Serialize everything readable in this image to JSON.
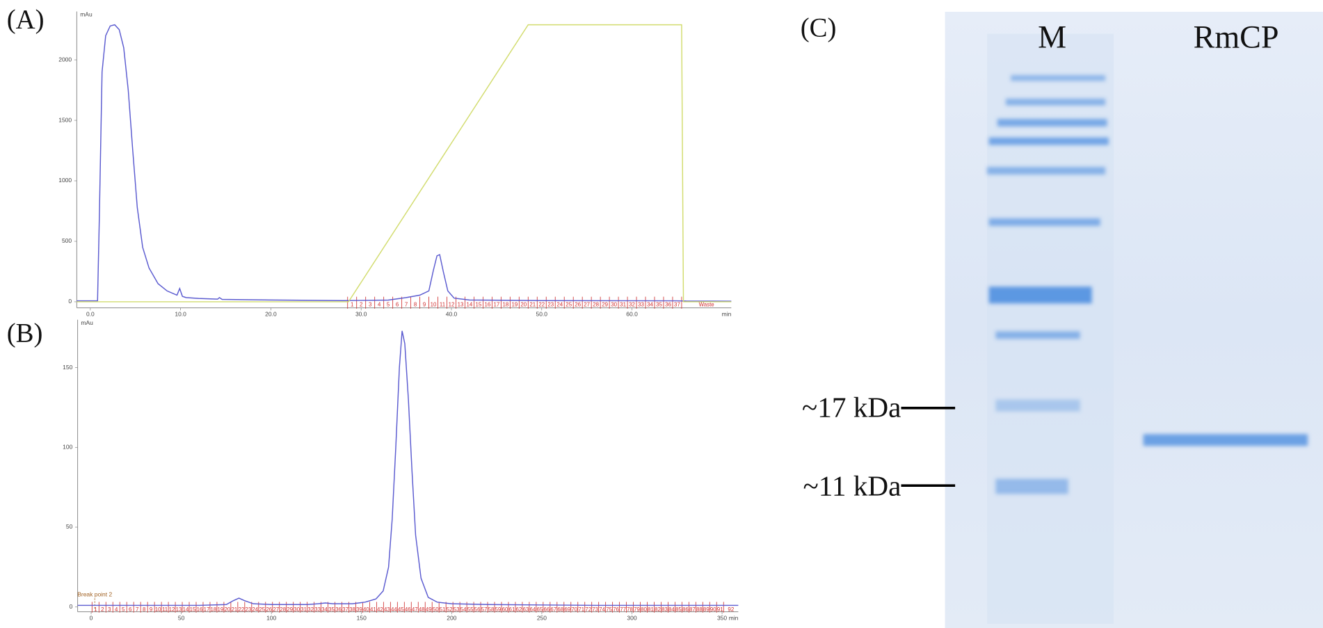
{
  "chart_data": [
    {
      "type": "line",
      "title": "(A)",
      "xlabel": "min",
      "ylabel": "mAu",
      "xlim": [
        -1.5,
        71
      ],
      "ylim": [
        -50,
        2400
      ],
      "xticks": [
        {
          "value": 0,
          "label": "0.0"
        },
        {
          "value": 10,
          "label": "10.0"
        },
        {
          "value": 20,
          "label": "20.0"
        },
        {
          "value": 30,
          "label": "30.0"
        },
        {
          "value": 40,
          "label": "40.0"
        },
        {
          "value": 50,
          "label": "50.0"
        },
        {
          "value": 60,
          "label": "60.0"
        }
      ],
      "yticks": [
        0,
        500,
        1000,
        1500,
        2000
      ],
      "series": [
        {
          "color": "#5b5bd0",
          "x": [
            -1.5,
            0.8,
            1.0,
            1.3,
            1.7,
            2.2,
            2.7,
            3.2,
            3.7,
            4.2,
            4.7,
            5.2,
            5.8,
            6.5,
            7.5,
            8.5,
            9.6,
            9.9,
            10.2,
            10.6,
            12,
            14.1,
            14.3,
            14.6,
            20,
            28,
            33,
            35,
            36.5,
            37.5,
            38,
            38.4,
            38.7,
            39.1,
            39.6,
            40.3,
            42,
            50,
            65,
            66,
            71
          ],
          "values": [
            8,
            8,
            700,
            1900,
            2200,
            2280,
            2290,
            2250,
            2100,
            1750,
            1250,
            780,
            450,
            280,
            150,
            90,
            55,
            110,
            45,
            35,
            28,
            22,
            35,
            20,
            15,
            10,
            14,
            35,
            55,
            90,
            260,
            380,
            390,
            250,
            90,
            30,
            15,
            10,
            8,
            6,
            5
          ]
        },
        {
          "color": "#d2dc6e",
          "x": [
            -1.5,
            28.6,
            48.5,
            65.5,
            65.7,
            71
          ],
          "values": [
            0,
            0,
            2290,
            2290,
            0,
            0
          ]
        }
      ],
      "fractions": {
        "start": 28.5,
        "width": 1.0,
        "labels": [
          "1",
          "2",
          "3",
          "4",
          "5",
          "6",
          "7",
          "8",
          "9",
          "10",
          "11",
          "12",
          "13",
          "14",
          "15",
          "16",
          "17",
          "18",
          "19",
          "20",
          "21",
          "22",
          "23",
          "24",
          "25",
          "26",
          "27",
          "28",
          "29",
          "30",
          "31",
          "32",
          "33",
          "34",
          "35",
          "36",
          "37",
          "Waste"
        ]
      }
    },
    {
      "type": "line",
      "title": "(B)",
      "xlabel": "min",
      "ylabel": "mAu",
      "xlim": [
        -7.5,
        359
      ],
      "ylim": [
        -3,
        180
      ],
      "xticks": [
        0,
        50,
        100,
        150,
        200,
        250,
        300,
        350
      ],
      "yticks": [
        0,
        50,
        100,
        150
      ],
      "series": [
        {
          "color": "#5b5bd0",
          "x": [
            -7.5,
            0,
            60,
            75,
            79,
            82,
            85,
            90,
            100,
            120,
            126,
            130,
            134,
            145,
            152,
            158,
            162,
            165,
            167,
            169,
            171,
            172.5,
            174,
            176,
            178,
            180,
            183,
            187,
            192,
            200,
            220,
            280,
            359
          ],
          "values": [
            1,
            1,
            1,
            1.5,
            4,
            5.5,
            4,
            2,
            1.5,
            1.5,
            2,
            2.5,
            2,
            2,
            3,
            5,
            10,
            25,
            55,
            100,
            150,
            173,
            165,
            130,
            85,
            45,
            18,
            6,
            3,
            2,
            1.5,
            1,
            1
          ]
        }
      ],
      "annotation": {
        "text": "Break point 2",
        "x": 2
      },
      "fractions": {
        "start": 0.5,
        "width": 3.85,
        "labels": [
          "1",
          "2",
          "3",
          "4",
          "5",
          "6",
          "7",
          "8",
          "9",
          "10",
          "11",
          "12",
          "13",
          "14",
          "15",
          "16",
          "17",
          "18",
          "19",
          "20",
          "21",
          "22",
          "23",
          "24",
          "25",
          "26",
          "27",
          "28",
          "29",
          "30",
          "31",
          "32",
          "33",
          "34",
          "35",
          "36",
          "37",
          "38",
          "39",
          "40",
          "41",
          "42",
          "43",
          "44",
          "45",
          "46",
          "47",
          "48",
          "49",
          "50",
          "51",
          "52",
          "53",
          "54",
          "55",
          "56",
          "57",
          "58",
          "59",
          "60",
          "61",
          "62",
          "63",
          "64",
          "65",
          "66",
          "67",
          "68",
          "69",
          "70",
          "71",
          "72",
          "73",
          "74",
          "75",
          "76",
          "77",
          "78",
          "79",
          "80",
          "81",
          "82",
          "83",
          "84",
          "85",
          "86",
          "87",
          "88",
          "89",
          "90",
          "91",
          "92"
        ]
      }
    }
  ],
  "gel": {
    "title": "(C)",
    "lanes": [
      "M",
      "RmCP"
    ],
    "markers": [
      {
        "label": "~17 kDa"
      },
      {
        "label": "~11 kDa"
      }
    ]
  }
}
